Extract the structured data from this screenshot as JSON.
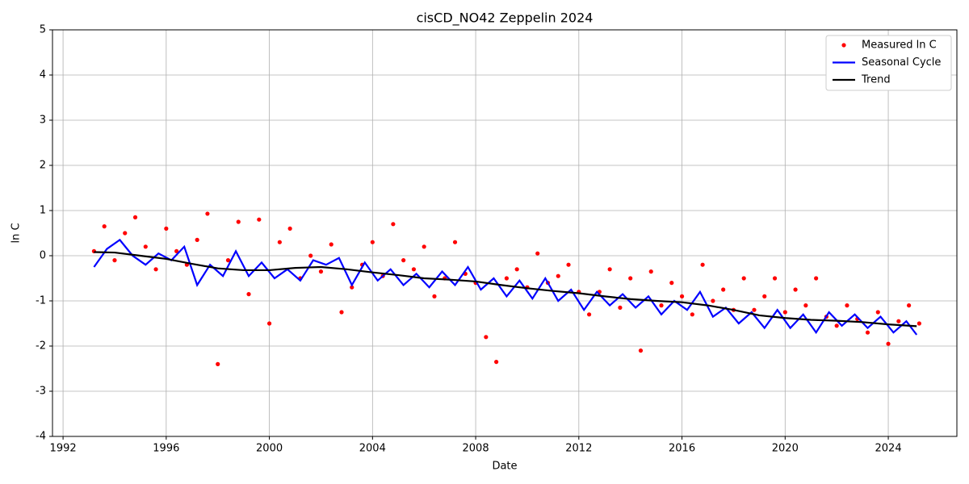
{
  "chart_data": {
    "type": "line",
    "title": "cisCD_NO42 Zeppelin 2024",
    "x_label": "Date",
    "y_label": "ln C",
    "xlim": [
      1991.59,
      2026.66
    ],
    "ylim": [
      -4,
      5
    ],
    "xticks": [
      1992,
      1996,
      2000,
      2004,
      2008,
      2012,
      2016,
      2020,
      2024
    ],
    "yticks": [
      -4,
      -3,
      -2,
      -1,
      0,
      1,
      2,
      3,
      4,
      5
    ],
    "grid": true,
    "legend": "upper right",
    "series": [
      {
        "name": "Measured ln C",
        "color": "#ff0000",
        "mode": "markers",
        "x": [
          1993.2,
          1993.6,
          1994,
          1994.4,
          1994.8,
          1995.2,
          1995.6,
          1996,
          1996.4,
          1996.8,
          1997.2,
          1997.6,
          1998,
          1998.4,
          1998.8,
          1999.2,
          1999.6,
          2000,
          2000.4,
          2000.8,
          2001.2,
          2001.6,
          2002,
          2002.4,
          2002.8,
          2003.2,
          2003.6,
          2004,
          2004.4,
          2004.8,
          2005.2,
          2005.6,
          2006,
          2006.4,
          2006.8,
          2007.2,
          2007.6,
          2008,
          2008.4,
          2008.8,
          2009.2,
          2009.6,
          2010,
          2010.4,
          2010.8,
          2011.2,
          2011.6,
          2012,
          2012.4,
          2012.8,
          2013.2,
          2013.6,
          2014,
          2014.4,
          2014.8,
          2015.2,
          2015.6,
          2016,
          2016.4,
          2016.8,
          2017.2,
          2017.6,
          2018,
          2018.4,
          2018.8,
          2019.2,
          2019.6,
          2020,
          2020.4,
          2020.8,
          2021.2,
          2021.6,
          2022,
          2022.4,
          2022.8,
          2023.2,
          2023.6,
          2024,
          2024.4,
          2024.8,
          2025.2
        ],
        "values": [
          0.1,
          0.65,
          -0.1,
          0.5,
          0.85,
          0.2,
          -0.3,
          0.6,
          0.1,
          -0.2,
          0.35,
          0.93,
          -2.4,
          -0.1,
          0.75,
          -0.85,
          0.8,
          -1.5,
          0.3,
          0.6,
          -0.5,
          0.0,
          -0.35,
          0.25,
          -1.25,
          -0.7,
          -0.2,
          0.3,
          -0.45,
          0.7,
          -0.1,
          -0.3,
          0.2,
          -0.9,
          -0.5,
          0.3,
          -0.4,
          -0.6,
          -1.8,
          -2.35,
          -0.5,
          -0.3,
          -0.7,
          0.05,
          -0.6,
          -0.45,
          -0.2,
          -0.8,
          -1.3,
          -0.8,
          -0.3,
          -1.15,
          -0.5,
          -2.1,
          -0.35,
          -1.1,
          -0.6,
          -0.9,
          -1.3,
          -0.2,
          -1.0,
          -0.75,
          -1.2,
          -0.5,
          -1.2,
          -0.9,
          -0.5,
          -1.25,
          -0.75,
          -1.1,
          -0.5,
          -1.35,
          -1.55,
          -1.1,
          -1.4,
          -1.7,
          -1.25,
          -1.95,
          -1.45,
          -1.1,
          -1.5
        ]
      },
      {
        "name": "Seasonal Cycle",
        "color": "#0000ff",
        "mode": "line",
        "x": [
          1993.2,
          1993.7,
          1994.2,
          1994.7,
          1995.2,
          1995.7,
          1996.2,
          1996.7,
          1997.2,
          1997.7,
          1998.2,
          1998.7,
          1999.2,
          1999.7,
          2000.2,
          2000.7,
          2001.2,
          2001.7,
          2002.2,
          2002.7,
          2003.2,
          2003.7,
          2004.2,
          2004.7,
          2005.2,
          2005.7,
          2006.2,
          2006.7,
          2007.2,
          2007.7,
          2008.2,
          2008.7,
          2009.2,
          2009.7,
          2010.2,
          2010.7,
          2011.2,
          2011.7,
          2012.2,
          2012.7,
          2013.2,
          2013.7,
          2014.2,
          2014.7,
          2015.2,
          2015.7,
          2016.2,
          2016.7,
          2017.2,
          2017.7,
          2018.2,
          2018.7,
          2019.2,
          2019.7,
          2020.2,
          2020.7,
          2021.2,
          2021.7,
          2022.2,
          2022.7,
          2023.2,
          2023.7,
          2024.2,
          2024.7,
          2025.1
        ],
        "values": [
          -0.25,
          0.15,
          0.35,
          0.0,
          -0.2,
          0.05,
          -0.1,
          0.2,
          -0.65,
          -0.2,
          -0.45,
          0.1,
          -0.45,
          -0.15,
          -0.5,
          -0.3,
          -0.55,
          -0.1,
          -0.2,
          -0.05,
          -0.65,
          -0.15,
          -0.55,
          -0.3,
          -0.65,
          -0.4,
          -0.7,
          -0.35,
          -0.65,
          -0.25,
          -0.75,
          -0.5,
          -0.9,
          -0.55,
          -0.95,
          -0.5,
          -1.0,
          -0.75,
          -1.2,
          -0.8,
          -1.1,
          -0.85,
          -1.15,
          -0.9,
          -1.3,
          -1.0,
          -1.2,
          -0.8,
          -1.35,
          -1.15,
          -1.5,
          -1.25,
          -1.6,
          -1.2,
          -1.6,
          -1.3,
          -1.7,
          -1.25,
          -1.55,
          -1.3,
          -1.6,
          -1.35,
          -1.7,
          -1.45,
          -1.75
        ]
      },
      {
        "name": "Trend",
        "color": "#000000",
        "mode": "line",
        "x": [
          1993.2,
          1994,
          1995,
          1996,
          1997,
          1998,
          1999,
          2000,
          2001,
          2002,
          2003,
          2004,
          2005,
          2006,
          2007,
          2008,
          2009,
          2010,
          2011,
          2012,
          2013,
          2014,
          2015,
          2016,
          2017,
          2018,
          2019,
          2020,
          2021,
          2022,
          2023,
          2024,
          2025.1
        ],
        "values": [
          0.08,
          0.07,
          0.0,
          -0.07,
          -0.18,
          -0.28,
          -0.32,
          -0.32,
          -0.27,
          -0.25,
          -0.3,
          -0.37,
          -0.43,
          -0.5,
          -0.53,
          -0.57,
          -0.65,
          -0.72,
          -0.78,
          -0.83,
          -0.9,
          -0.96,
          -1.0,
          -1.03,
          -1.1,
          -1.2,
          -1.32,
          -1.38,
          -1.42,
          -1.44,
          -1.47,
          -1.52,
          -1.56
        ]
      }
    ]
  }
}
